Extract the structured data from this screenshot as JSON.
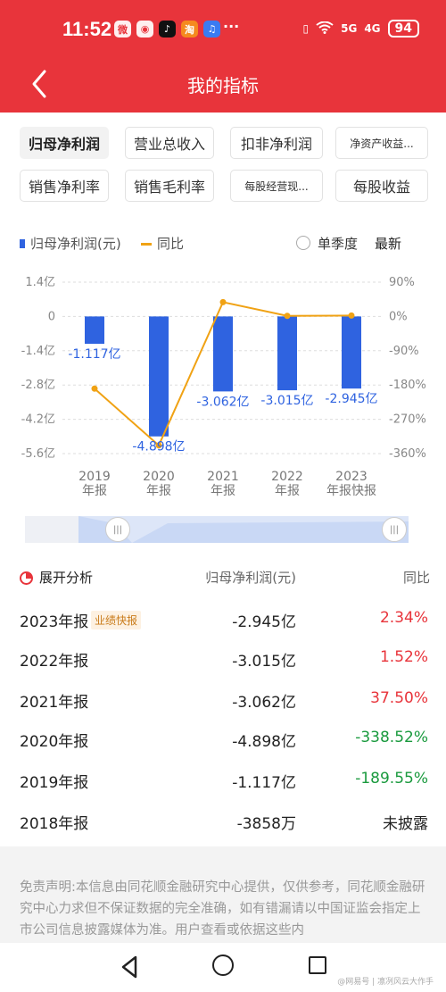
{
  "status_bar": {
    "time": "11:52",
    "app_icons": [
      "weibo-icon",
      "pet-app-icon",
      "tiktok-icon",
      "taobao-icon",
      "music-icon"
    ],
    "dots": "···",
    "signal1": "5G",
    "signal2": "4G",
    "battery": "94"
  },
  "header": {
    "title": "我的指标"
  },
  "tabs": [
    {
      "label": "归母净利润",
      "active": true
    },
    {
      "label": "营业总收入"
    },
    {
      "label": "扣非净利润"
    },
    {
      "label": "净资产收益..."
    },
    {
      "label": "销售净利率"
    },
    {
      "label": "销售毛利率"
    },
    {
      "label": "每股经营现..."
    },
    {
      "label": "每股收益"
    }
  ],
  "legend": {
    "bar_label": "归母净利润(元)",
    "line_label": "同比",
    "radio_label": "单季度",
    "latest_label": "最新"
  },
  "chart_data": {
    "type": "bar",
    "categories": [
      "2019\n年报",
      "2020\n年报",
      "2021\n年报",
      "2022\n年报",
      "2023\n年报快报"
    ],
    "series": [
      {
        "name": "归母净利润(元)",
        "type": "bar",
        "values": [
          -1.117,
          -4.898,
          -3.062,
          -3.015,
          -2.945
        ],
        "labels": [
          "-1.117亿",
          "-4.898亿",
          "-3.062亿",
          "-3.015亿",
          "-2.945亿"
        ],
        "color": "#2f63e0"
      },
      {
        "name": "同比",
        "type": "line",
        "values": [
          -189.55,
          -338.52,
          37.5,
          1.52,
          2.34
        ],
        "color": "#f0a214"
      }
    ],
    "y_left": {
      "ticks": [
        "1.4亿",
        "0",
        "-1.4亿",
        "-2.8亿",
        "-4.2亿",
        "-5.6亿"
      ],
      "range": [
        -5.6,
        1.4
      ]
    },
    "y_right": {
      "ticks": [
        "90%",
        "0%",
        "-90%",
        "-180%",
        "-270%",
        "-360%"
      ],
      "range": [
        -360,
        90
      ]
    },
    "grid": "dashed horizontal"
  },
  "analysis": {
    "title": "展开分析",
    "col_value": "归母净利润(元)",
    "col_yoy": "同比",
    "rows": [
      {
        "year": "2023年报",
        "badge": "业绩快报",
        "value": "-2.945亿",
        "yoy": "2.34%",
        "color": "red"
      },
      {
        "year": "2022年报",
        "value": "-3.015亿",
        "yoy": "1.52%",
        "color": "red"
      },
      {
        "year": "2021年报",
        "value": "-3.062亿",
        "yoy": "37.50%",
        "color": "red"
      },
      {
        "year": "2020年报",
        "value": "-4.898亿",
        "yoy": "-338.52%",
        "color": "green"
      },
      {
        "year": "2019年报",
        "value": "-1.117亿",
        "yoy": "-189.55%",
        "color": "green"
      },
      {
        "year": "2018年报",
        "value": "-3858万",
        "yoy": "未披露",
        "color": "gray"
      }
    ]
  },
  "disclaimer": "免责声明:本信息由同花顺金融研究中心提供，仅供参考，同花顺金融研究中心力求但不保证数据的完全准确，如有错漏请以中国证监会指定上市公司信息披露媒体为准。用户查看或依据这些内",
  "watermark": "@网易号 | 凛冽风云大作手"
}
